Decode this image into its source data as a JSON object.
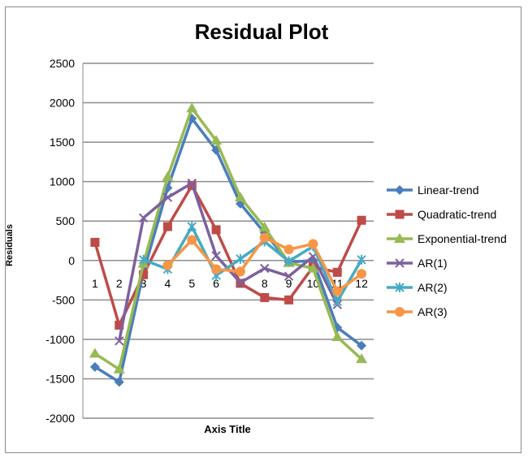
{
  "chart_data": {
    "type": "line",
    "title": "Residual Plot",
    "xlabel": "Axis Title",
    "ylabel": "Residuals",
    "categories": [
      "1",
      "2",
      "3",
      "4",
      "5",
      "6",
      "7",
      "8",
      "9",
      "10",
      "11",
      "12"
    ],
    "ylim": [
      -2000,
      2500
    ],
    "yticks": [
      -2000,
      -1500,
      -1000,
      -500,
      0,
      500,
      1000,
      1500,
      2000,
      2500
    ],
    "grid": true,
    "legend": "right",
    "series": [
      {
        "name": "Linear-trend",
        "color": "#4a7ebb",
        "marker": "diamond",
        "values": [
          -1350,
          -1540,
          -150,
          920,
          1800,
          1400,
          720,
          350,
          -20,
          0,
          -850,
          -1080
        ]
      },
      {
        "name": "Quadratic-trend",
        "color": "#be4b48",
        "marker": "square",
        "values": [
          230,
          -820,
          -180,
          430,
          950,
          390,
          -290,
          -470,
          -500,
          -80,
          -150,
          510
        ]
      },
      {
        "name": "Exponential-trend",
        "color": "#98b954",
        "marker": "triangle",
        "values": [
          -1180,
          -1380,
          -40,
          1060,
          1930,
          1520,
          800,
          420,
          -30,
          -100,
          -970,
          -1250
        ]
      },
      {
        "name": "AR(1)",
        "color": "#7d60a0",
        "marker": "x",
        "values": [
          null,
          -1020,
          540,
          800,
          980,
          60,
          -280,
          -100,
          -200,
          50,
          -560,
          null
        ]
      },
      {
        "name": "AR(2)",
        "color": "#46aac5",
        "marker": "star",
        "values": [
          null,
          null,
          10,
          -110,
          430,
          -190,
          20,
          240,
          -10,
          180,
          -520,
          10
        ]
      },
      {
        "name": "AR(3)",
        "color": "#f79646",
        "marker": "circle",
        "values": [
          null,
          null,
          null,
          -60,
          260,
          -110,
          -140,
          290,
          140,
          210,
          -390,
          -170
        ]
      }
    ]
  }
}
